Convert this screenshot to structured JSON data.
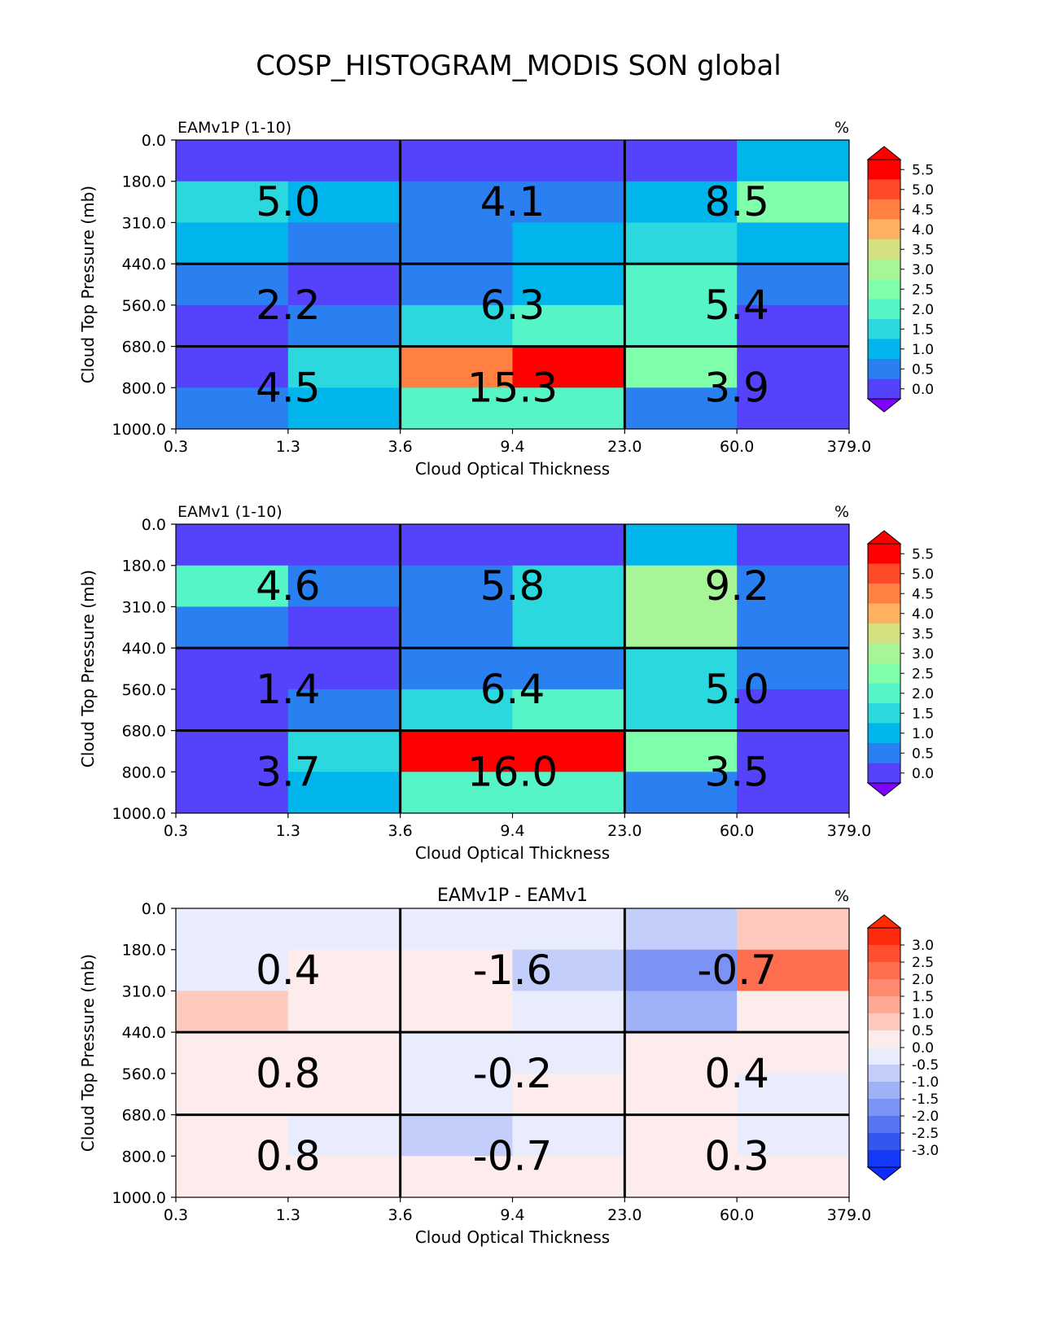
{
  "title": "COSP_HISTOGRAM_MODIS SON global",
  "chart_data": [
    {
      "type": "heatmap",
      "title_left": "EAMv1P (1-10)",
      "title_center": "",
      "units": "%",
      "xlabel": "Cloud Optical Thickness",
      "ylabel": "Cloud Top Pressure (mb)",
      "x_ticks": [
        "0.3",
        "1.3",
        "3.6",
        "9.4",
        "23.0",
        "60.0",
        "379.0"
      ],
      "y_ticks": [
        "0.0",
        "180.0",
        "310.0",
        "440.0",
        "560.0",
        "680.0",
        "800.0",
        "1000.0"
      ],
      "colorbar_ticks": [
        "5.5",
        "5.0",
        "4.5",
        "4.0",
        "3.5",
        "3.0",
        "2.5",
        "2.0",
        "1.5",
        "1.0",
        "0.5",
        "0.0"
      ],
      "colorbar_colors": [
        "#ff0000",
        "#ff4a2a",
        "#ff8040",
        "#ffb060",
        "#d5e080",
        "#a8f598",
        "#80ffaa",
        "#55f5c8",
        "#2ad8de",
        "#00b5ec",
        "#2a80f0",
        "#5543fc"
      ],
      "colorbar_under": "#8000ff",
      "cell_colors": [
        [
          "#5543fc",
          "#5543fc",
          "#5543fc",
          "#5543fc",
          "#5543fc",
          "#00b5ec"
        ],
        [
          "#2ad8de",
          "#00b5ec",
          "#2a80f0",
          "#2a80f0",
          "#00b5ec",
          "#80ffaa"
        ],
        [
          "#00b5ec",
          "#2a80f0",
          "#2a80f0",
          "#00b5ec",
          "#2ad8de",
          "#00b5ec"
        ],
        [
          "#2a80f0",
          "#5543fc",
          "#2a80f0",
          "#00b5ec",
          "#55f5c8",
          "#2a80f0"
        ],
        [
          "#5543fc",
          "#2a80f0",
          "#2ad8de",
          "#55f5c8",
          "#55f5c8",
          "#5543fc"
        ],
        [
          "#5543fc",
          "#2ad8de",
          "#ff8040",
          "#ff0000",
          "#80ffaa",
          "#5543fc"
        ],
        [
          "#2a80f0",
          "#00b5ec",
          "#55f5c8",
          "#55f5c8",
          "#2a80f0",
          "#5543fc"
        ]
      ],
      "block_values": [
        [
          "5.0",
          "4.1",
          "8.5"
        ],
        [
          "2.2",
          "6.3",
          "5.4"
        ],
        [
          "4.5",
          "15.3",
          "3.9"
        ]
      ]
    },
    {
      "type": "heatmap",
      "title_left": "EAMv1 (1-10)",
      "title_center": "",
      "units": "%",
      "xlabel": "Cloud Optical Thickness",
      "ylabel": "Cloud Top Pressure (mb)",
      "x_ticks": [
        "0.3",
        "1.3",
        "3.6",
        "9.4",
        "23.0",
        "60.0",
        "379.0"
      ],
      "y_ticks": [
        "0.0",
        "180.0",
        "310.0",
        "440.0",
        "560.0",
        "680.0",
        "800.0",
        "1000.0"
      ],
      "colorbar_ticks": [
        "5.5",
        "5.0",
        "4.5",
        "4.0",
        "3.5",
        "3.0",
        "2.5",
        "2.0",
        "1.5",
        "1.0",
        "0.5",
        "0.0"
      ],
      "colorbar_colors": [
        "#ff0000",
        "#ff4a2a",
        "#ff8040",
        "#ffb060",
        "#d5e080",
        "#a8f598",
        "#80ffaa",
        "#55f5c8",
        "#2ad8de",
        "#00b5ec",
        "#2a80f0",
        "#5543fc"
      ],
      "colorbar_under": "#8000ff",
      "cell_colors": [
        [
          "#5543fc",
          "#5543fc",
          "#5543fc",
          "#5543fc",
          "#00b5ec",
          "#5543fc"
        ],
        [
          "#55f5c8",
          "#2a80f0",
          "#2a80f0",
          "#2ad8de",
          "#a8f598",
          "#2a80f0"
        ],
        [
          "#2a80f0",
          "#5543fc",
          "#2a80f0",
          "#2ad8de",
          "#a8f598",
          "#2a80f0"
        ],
        [
          "#5543fc",
          "#5543fc",
          "#2a80f0",
          "#2a80f0",
          "#2ad8de",
          "#2a80f0"
        ],
        [
          "#5543fc",
          "#2a80f0",
          "#2ad8de",
          "#55f5c8",
          "#2ad8de",
          "#5543fc"
        ],
        [
          "#5543fc",
          "#2ad8de",
          "#ff0000",
          "#ff0000",
          "#80ffaa",
          "#5543fc"
        ],
        [
          "#5543fc",
          "#00b5ec",
          "#55f5c8",
          "#55f5c8",
          "#2a80f0",
          "#5543fc"
        ]
      ],
      "block_values": [
        [
          "4.6",
          "5.8",
          "9.2"
        ],
        [
          "1.4",
          "6.4",
          "5.0"
        ],
        [
          "3.7",
          "16.0",
          "3.5"
        ]
      ]
    },
    {
      "type": "heatmap",
      "title_left": "",
      "title_center": "EAMv1P - EAMv1",
      "units": "%",
      "xlabel": "Cloud Optical Thickness",
      "ylabel": "Cloud Top Pressure (mb)",
      "x_ticks": [
        "0.3",
        "1.3",
        "3.6",
        "9.4",
        "23.0",
        "60.0",
        "379.0"
      ],
      "y_ticks": [
        "0.0",
        "180.0",
        "310.0",
        "440.0",
        "560.0",
        "680.0",
        "800.0",
        "1000.0"
      ],
      "colorbar_ticks": [
        "3.0",
        "2.5",
        "2.0",
        "1.5",
        "1.0",
        "0.5",
        "0.0",
        "-0.5",
        "-1.0",
        "-1.5",
        "-2.0",
        "-2.5",
        "-3.0"
      ],
      "colorbar_colors": [
        "#ff2b0e",
        "#ff4f2e",
        "#ff6e4e",
        "#ff8a70",
        "#ffa894",
        "#ffcabe",
        "#fdeceb",
        "#e8ecfd",
        "#c3cefa",
        "#9fb1f7",
        "#7a93f4",
        "#5575f1",
        "#3357ee",
        "#1439f8"
      ],
      "colorbar_under": "#0d2bff",
      "colorbar_over": "#ff2a00",
      "cell_colors": [
        [
          "#e8ecfd",
          "#e8ecfd",
          "#e8ecfd",
          "#e8ecfd",
          "#c3cefa",
          "#ffcabe"
        ],
        [
          "#e8ecfd",
          "#fdeceb",
          "#fdeceb",
          "#c3cefa",
          "#7a93f4",
          "#ff6e4e"
        ],
        [
          "#ffcabe",
          "#fdeceb",
          "#fdeceb",
          "#e8ecfd",
          "#9fb1f7",
          "#fdeceb"
        ],
        [
          "#fdeceb",
          "#fdeceb",
          "#e8ecfd",
          "#e8ecfd",
          "#fdeceb",
          "#fdeceb"
        ],
        [
          "#fdeceb",
          "#fdeceb",
          "#e8ecfd",
          "#fdeceb",
          "#fdeceb",
          "#e8ecfd"
        ],
        [
          "#fdeceb",
          "#e8ecfd",
          "#c3cefa",
          "#e8ecfd",
          "#fdeceb",
          "#e8ecfd"
        ],
        [
          "#fdeceb",
          "#fdeceb",
          "#fdeceb",
          "#fdeceb",
          "#fdeceb",
          "#fdeceb"
        ]
      ],
      "block_values": [
        [
          "0.4",
          "-1.6",
          "-0.7"
        ],
        [
          "0.8",
          "-0.2",
          "0.4"
        ],
        [
          "0.8",
          "-0.7",
          "0.3"
        ]
      ]
    }
  ]
}
